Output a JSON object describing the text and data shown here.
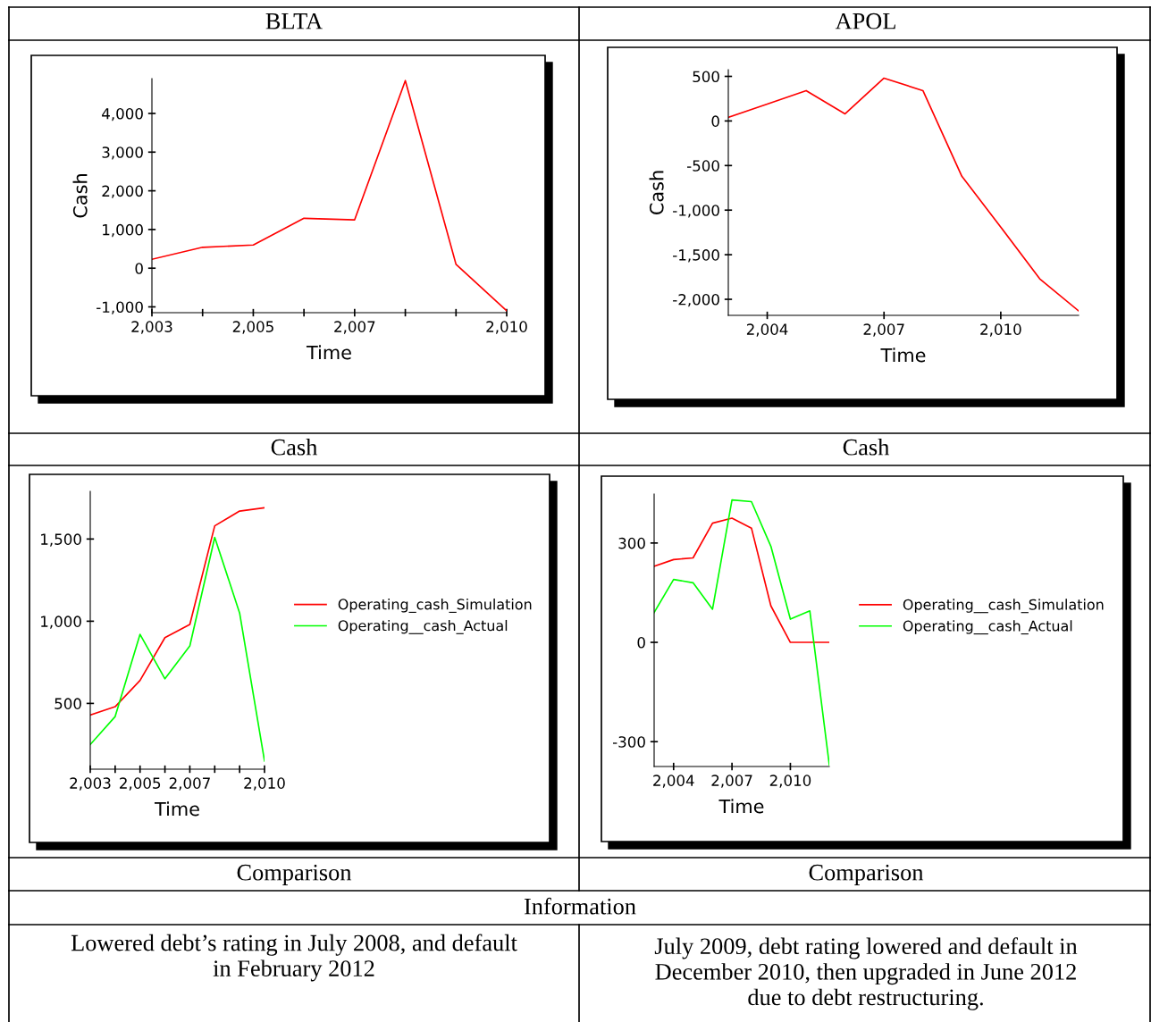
{
  "chart_data": [
    {
      "type": "line",
      "title": "BLTA",
      "xlabel": "Time",
      "ylabel": "Cash",
      "annotations": [
        "Cash"
      ],
      "x": [
        2003,
        2004,
        2005,
        2006,
        2007,
        2008,
        2009,
        2010
      ],
      "series": [
        {
          "color": "#ff0000",
          "values": [
            230,
            540,
            600,
            1290,
            1250,
            4850,
            100,
            -1100
          ]
        }
      ],
      "xlim": [
        2003,
        2010
      ],
      "xticks": [
        {
          "value": 2003,
          "label": "2,003"
        },
        {
          "value": 2004,
          "label": null
        },
        {
          "value": 2005,
          "label": "2,005"
        },
        {
          "value": 2006,
          "label": null
        },
        {
          "value": 2007,
          "label": "2,007"
        },
        {
          "value": 2008,
          "label": null
        },
        {
          "value": 2009,
          "label": null
        },
        {
          "value": 2010,
          "label": "2,010"
        }
      ],
      "ylim": [
        -1150,
        4900
      ],
      "yticks": [
        {
          "value": -1000,
          "label": "-1,000"
        },
        0,
        {
          "value": 1000,
          "label": "1,000"
        },
        {
          "value": 2000,
          "label": "2,000"
        },
        {
          "value": 3000,
          "label": "3,000"
        },
        {
          "value": 4000,
          "label": "4,000"
        }
      ],
      "grid": false
    },
    {
      "type": "line",
      "title": "APOL",
      "xlabel": "Time",
      "ylabel": "Cash",
      "annotations": [
        "Cash"
      ],
      "x": [
        2003,
        2004,
        2005,
        2006,
        2007,
        2008,
        2009,
        2010,
        2011,
        2012
      ],
      "series": [
        {
          "color": "#ff0000",
          "values": [
            40,
            190,
            340,
            80,
            480,
            340,
            -620,
            -1190,
            -1770,
            -2130
          ]
        }
      ],
      "xlim": [
        2003,
        2012
      ],
      "xticks": [
        {
          "value": 2004,
          "label": "2,004"
        },
        {
          "value": 2007,
          "label": "2,007"
        },
        {
          "value": 2010,
          "label": "2,010"
        }
      ],
      "ylim": [
        -2180,
        575
      ],
      "yticks": [
        {
          "value": -2000,
          "label": "-2,000"
        },
        {
          "value": -1500,
          "label": "-1,500"
        },
        {
          "value": -1000,
          "label": "-1,000"
        },
        -500,
        0,
        500
      ],
      "grid": false
    },
    {
      "type": "line",
      "xlabel": "Time",
      "annotations": [
        "Comparison",
        "Information",
        "Lowered debt’s rating in July 2008, and default\nin February 2012"
      ],
      "x": [
        2003,
        2004,
        2005,
        2006,
        2007,
        2008,
        2009,
        2010
      ],
      "series": [
        {
          "name": "Operating_cash_Simulation",
          "color": "#ff0000",
          "values": [
            430,
            480,
            640,
            900,
            980,
            1580,
            1670,
            1690
          ]
        },
        {
          "name": "Operating__cash_Actual",
          "color": "#00ff00",
          "values": [
            250,
            420,
            920,
            650,
            850,
            1510,
            1050,
            150
          ]
        }
      ],
      "xlim": [
        2003,
        2010
      ],
      "xticks": [
        {
          "value": 2003,
          "label": "2,003"
        },
        {
          "value": 2004,
          "label": null
        },
        {
          "value": 2005,
          "label": "2,005"
        },
        {
          "value": 2006,
          "label": null
        },
        {
          "value": 2007,
          "label": "2,007"
        },
        {
          "value": 2008,
          "label": null
        },
        {
          "value": 2009,
          "label": null
        },
        {
          "value": 2010,
          "label": "2,010"
        }
      ],
      "ylim": [
        100,
        1790
      ],
      "yticks": [
        500,
        {
          "value": 1000,
          "label": "1,000"
        },
        {
          "value": 1500,
          "label": "1,500"
        }
      ],
      "legend": "right",
      "grid": false
    },
    {
      "type": "line",
      "xlabel": "Time",
      "annotations": [
        "Comparison",
        "July 2009, debt rating lowered and default in\nDecember 2010, then upgraded in June 2012\ndue to debt restructuring."
      ],
      "x": [
        2003,
        2004,
        2005,
        2006,
        2007,
        2008,
        2009,
        2010,
        2011,
        2012
      ],
      "series": [
        {
          "name": "Operating__cash_Simulation",
          "color": "#ff0000",
          "values": [
            230,
            250,
            255,
            360,
            375,
            345,
            110,
            0,
            0,
            0
          ]
        },
        {
          "name": "Operating__cash_Actual",
          "color": "#00ff00",
          "values": [
            90,
            190,
            180,
            100,
            430,
            425,
            290,
            70,
            95,
            -370
          ]
        }
      ],
      "xlim": [
        2003,
        2012
      ],
      "xticks": [
        {
          "value": 2004,
          "label": "2,004"
        },
        {
          "value": 2007,
          "label": "2,007"
        },
        {
          "value": 2010,
          "label": "2,010"
        }
      ],
      "ylim": [
        -375,
        448
      ],
      "yticks": [
        -300,
        0,
        300
      ],
      "legend": "right",
      "grid": false
    }
  ]
}
